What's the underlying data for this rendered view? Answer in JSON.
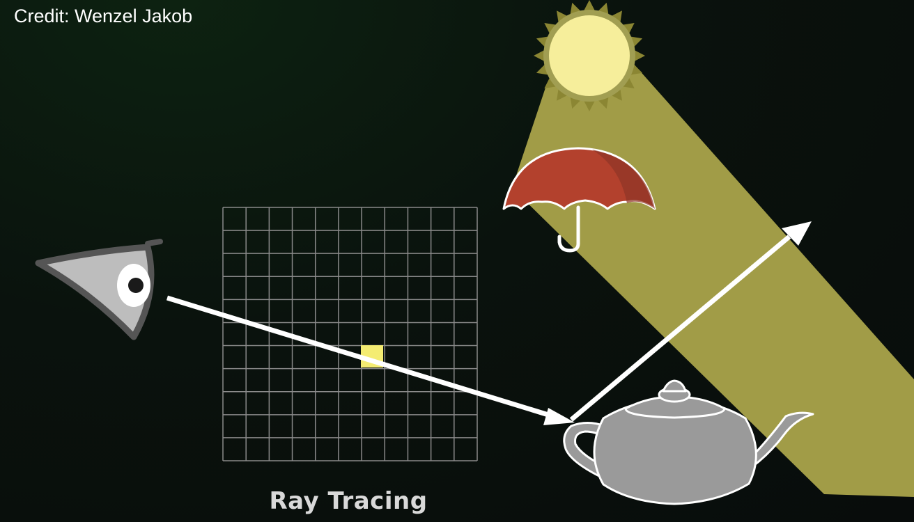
{
  "credit": "Credit: Wenzel Jakob",
  "title": "Ray Tracing",
  "colors": {
    "light_beam": "#a19c47",
    "sun_fill": "#f6ee9b",
    "sun_outline": "#8b8633",
    "pixel": "#f4ec72",
    "umbrella": "#b3412d",
    "teapot": "#9a9a9a",
    "eye": "#bdbdbd",
    "grid": "#8a8a8a",
    "ray": "#ffffff"
  },
  "icons": [
    "eye-icon",
    "sun-icon",
    "umbrella-icon",
    "teapot-icon"
  ]
}
